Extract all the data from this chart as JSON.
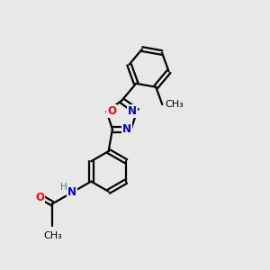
{
  "bg_color": "#e8e8e8",
  "bond_color": "#000000",
  "line_width": 1.6,
  "atom_colors": {
    "N": "#0000cd",
    "O": "#ff0000",
    "H": "#2e8b57",
    "C": "#000000"
  },
  "font_size": 8.5,
  "fig_size": [
    3.0,
    3.0
  ],
  "dpi": 100
}
